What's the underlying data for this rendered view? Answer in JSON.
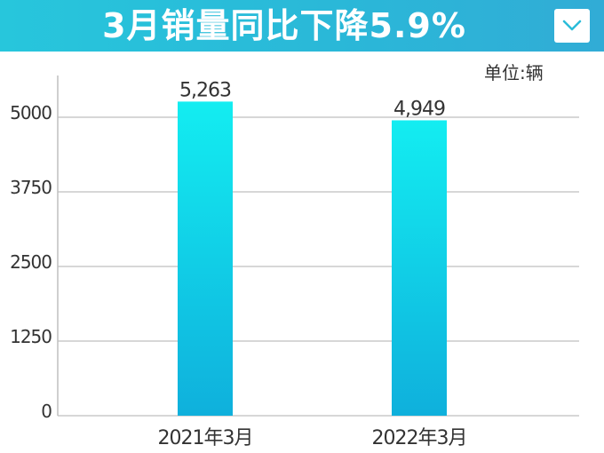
{
  "title": "3月销量同比下降5.9%",
  "unit": "单位:辆",
  "dropdown_icon": "chevron-down-icon",
  "colors": {
    "header_start": "#27c6dc",
    "header_end": "#31acd6",
    "bar_top": "#13edf1",
    "bar_bottom": "#0fb0dc",
    "grid": "#bfbfbf"
  },
  "chart_data": {
    "type": "bar",
    "categories": [
      "2021年3月",
      "2022年3月"
    ],
    "values": [
      5263,
      4949
    ],
    "value_labels": [
      "5,263",
      "4,949"
    ],
    "ylim": [
      0,
      5700
    ],
    "yticks": [
      0,
      1250,
      2500,
      3750,
      5000
    ],
    "ytick_labels": [
      "0",
      "1250",
      "2500",
      "3750",
      "5000"
    ],
    "grid": true
  }
}
